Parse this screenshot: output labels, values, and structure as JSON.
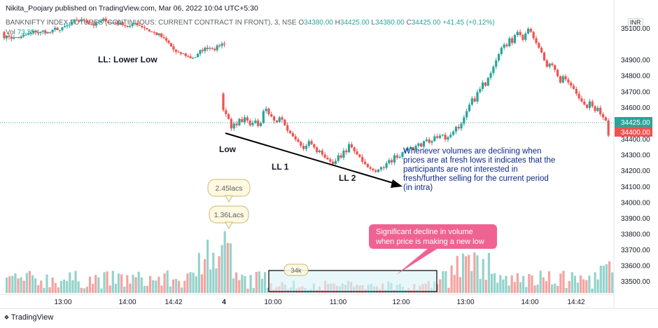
{
  "header": {
    "publisher": "Nikita_Poojary published on TradingView.com, Mar 06, 2022 10:04 UTC+5:30",
    "symbol_line": "BANKNIFTY INDEX FUTURES (CONTINUOUS: CURRENT CONTRACT IN FRONT), 3, NSE",
    "ohlc": {
      "o_label": "O",
      "o": "34380.00",
      "h_label": "H",
      "h": "34425.00",
      "l_label": "L",
      "l": "34380.00",
      "c_label": "C",
      "c": "34425.00",
      "change": "+41.45 (+0.12%)"
    },
    "vol_label": "Vol",
    "vol_value": "73.35K"
  },
  "currency_badge": "INR",
  "footer": {
    "brand": "TradingView"
  },
  "colors": {
    "up": "#26a69a",
    "down": "#ef5350",
    "vol_up": "#93d3cc",
    "vol_down": "#f4a3a1",
    "price_line": "#26a69a",
    "box_fill": "#d8f2f6",
    "callout_pink": "#f06292",
    "text_blue": "#0d2a8a"
  },
  "chart_data": {
    "type": "candlestick",
    "title": "",
    "interval": "3",
    "ylim": [
      33430,
      35140
    ],
    "y_ticks": [
      "33500.00",
      "33600.00",
      "33700.00",
      "33800.00",
      "33900.00",
      "34000.00",
      "34100.00",
      "34200.00",
      "34300.00",
      "34400.00",
      "34500.00",
      "34600.00",
      "34700.00",
      "34800.00",
      "34900.00",
      "35100.00"
    ],
    "x_ticks": [
      "13:00",
      "14:00",
      "14:42",
      "4",
      "10:00",
      "11:00",
      "12:00",
      "13:00",
      "14:00",
      "14:42"
    ],
    "last_price_label": "34425.00",
    "prev_close_label": "34400.00",
    "annotations": {
      "ll_legend": "LL: Lower Low",
      "low": "Low",
      "ll1": "LL 1",
      "ll2": "LL 2",
      "note": [
        "Whenever volumes are declining when",
        "prices are at fresh lows it indicates that the",
        "participants are not interested in",
        "fresh/further selling for the current period",
        "(in intra)"
      ],
      "vol_bubble_1": "2.45lacs",
      "vol_bubble_2": "1.36Lacs",
      "vol_bubble_3": "34k",
      "pink_callout": [
        "Significant decline in volume",
        "when price is making a new low"
      ]
    },
    "day2_closes": [
      34585,
      34560,
      34530,
      34470,
      34500,
      34490,
      34530,
      34510,
      34540,
      34520,
      34490,
      34505,
      34520,
      34485,
      34505,
      34580,
      34595,
      34560,
      34545,
      34520,
      34510,
      34540,
      34525,
      34490,
      34455,
      34440,
      34420,
      34400,
      34385,
      34360,
      34340,
      34360,
      34390,
      34370,
      34350,
      34320,
      34330,
      34305,
      34285,
      34275,
      34260,
      34245,
      34265,
      34300,
      34285,
      34330,
      34320,
      34370,
      34350,
      34325,
      34305,
      34290,
      34260,
      34245,
      34225,
      34215,
      34205,
      34195,
      34210,
      34225,
      34220,
      34250,
      34270,
      34255,
      34300,
      34285,
      34290,
      34320,
      34330,
      34345,
      34350,
      34335,
      34360,
      34375,
      34355,
      34390,
      34400,
      34380,
      34390,
      34420,
      34410,
      34425,
      34430,
      34400,
      34415,
      34430,
      34450,
      34480,
      34470,
      34500,
      34540,
      34580,
      34620,
      34660,
      34640,
      34700,
      34720,
      34760,
      34740,
      34790,
      34820,
      34860,
      34900,
      34940,
      34980,
      35000,
      34990,
      35040,
      35010,
      35060,
      35080,
      35060,
      35030,
      35070,
      35100,
      35080,
      35040,
      35010,
      34980,
      34950,
      34900,
      34860,
      34880,
      34870,
      34840,
      34800,
      34760,
      34800,
      34780,
      34760,
      34740,
      34720,
      34690,
      34660,
      34640,
      34620,
      34600,
      34640,
      34610,
      34580,
      34600,
      34560,
      34540,
      34520,
      34425
    ]
  }
}
